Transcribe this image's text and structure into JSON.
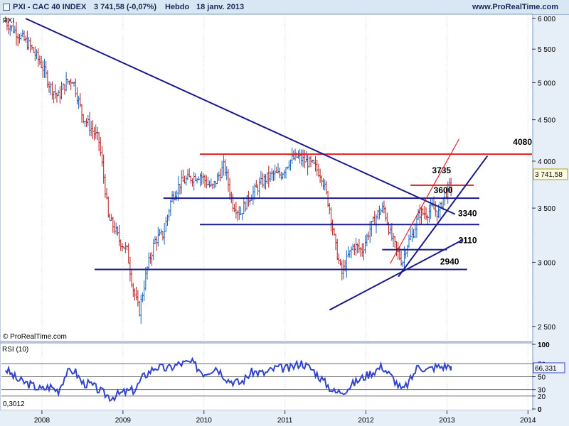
{
  "header": {
    "symbol_line": "PXI - CAC 40 INDEX",
    "price_line": "3 741,58 (-0,07%)",
    "period": "Hebdo",
    "date": "18 janv. 2013",
    "site": "www.ProRealTime.com"
  },
  "watermark": "© ProRealTime.com",
  "corner_tag": "PXI",
  "rsi_label": "RSI (10)",
  "rsi_value_tag": "66,331",
  "rsi_min_label": "0,3012",
  "last_price_tag": "3 741,58",
  "colors": {
    "up": "#1565c0",
    "down": "#b71c1c",
    "trend": "#1a1a8c",
    "resist": "#e02020",
    "rsi": "#3344cc"
  },
  "chart_data": {
    "type": "line",
    "subtype": "ohlc-bars-weekly",
    "x_labels": [
      "2008",
      "2009",
      "2010",
      "2011",
      "2012",
      "2013",
      "2014"
    ],
    "x_tick_values": [
      2008,
      2009,
      2010,
      2011,
      2012,
      2013,
      2014
    ],
    "y_labels": [
      "6 000",
      "5 500",
      "5 000",
      "4 500",
      "4 000",
      "3 500",
      "3 000",
      "2 500"
    ],
    "y_tick_values": [
      6000,
      5500,
      5000,
      4500,
      4000,
      3500,
      3000,
      2500
    ],
    "y_scale": "log",
    "ylim": [
      2400,
      6050
    ],
    "xlim": [
      2007.5,
      2014.05
    ],
    "price_path": [
      [
        2007.55,
        5950
      ],
      [
        2007.7,
        5750
      ],
      [
        2007.85,
        5550
      ],
      [
        2008.0,
        5250
      ],
      [
        2008.1,
        4950
      ],
      [
        2008.2,
        4800
      ],
      [
        2008.3,
        5000
      ],
      [
        2008.38,
        5050
      ],
      [
        2008.5,
        4550
      ],
      [
        2008.6,
        4400
      ],
      [
        2008.7,
        4250
      ],
      [
        2008.78,
        3700
      ],
      [
        2008.82,
        3400
      ],
      [
        2008.9,
        3300
      ],
      [
        2008.95,
        3200
      ],
      [
        2009.05,
        3100
      ],
      [
        2009.12,
        2800
      ],
      [
        2009.2,
        2600
      ],
      [
        2009.3,
        2950
      ],
      [
        2009.4,
        3200
      ],
      [
        2009.5,
        3250
      ],
      [
        2009.6,
        3600
      ],
      [
        2009.7,
        3750
      ],
      [
        2009.8,
        3800
      ],
      [
        2009.95,
        3850
      ],
      [
        2010.1,
        3700
      ],
      [
        2010.25,
        3950
      ],
      [
        2010.35,
        3550
      ],
      [
        2010.45,
        3450
      ],
      [
        2010.55,
        3600
      ],
      [
        2010.65,
        3700
      ],
      [
        2010.75,
        3800
      ],
      [
        2010.85,
        3850
      ],
      [
        2010.95,
        3850
      ],
      [
        2011.05,
        4000
      ],
      [
        2011.15,
        4050
      ],
      [
        2011.25,
        4000
      ],
      [
        2011.35,
        3950
      ],
      [
        2011.45,
        3850
      ],
      [
        2011.55,
        3500
      ],
      [
        2011.62,
        3150
      ],
      [
        2011.7,
        2900
      ],
      [
        2011.78,
        3050
      ],
      [
        2011.85,
        3150
      ],
      [
        2011.95,
        3100
      ],
      [
        2012.05,
        3300
      ],
      [
        2012.15,
        3450
      ],
      [
        2012.22,
        3500
      ],
      [
        2012.3,
        3250
      ],
      [
        2012.38,
        3100
      ],
      [
        2012.45,
        3000
      ],
      [
        2012.5,
        3150
      ],
      [
        2012.58,
        3250
      ],
      [
        2012.66,
        3450
      ],
      [
        2012.75,
        3450
      ],
      [
        2012.82,
        3500
      ],
      [
        2012.9,
        3450
      ],
      [
        2012.95,
        3600
      ],
      [
        2013.05,
        3741.58
      ]
    ],
    "levels": [
      {
        "label": "4080",
        "value": 4080,
        "color": "red"
      },
      {
        "label": "3735",
        "value": 3735,
        "color": "red"
      },
      {
        "label": "3600",
        "value": 3600,
        "color": "navy"
      },
      {
        "label": "3340",
        "value": 3340,
        "color": "navy"
      },
      {
        "label": "3110",
        "value": 3110,
        "color": "navy"
      },
      {
        "label": "2940",
        "value": 2940,
        "color": "navy"
      }
    ],
    "trendlines": [
      {
        "from": [
          2007.8,
          6000
        ],
        "to": [
          2013.1,
          3440
        ],
        "color": "navy"
      },
      {
        "from": [
          2011.55,
          2620
        ],
        "to": [
          2013.2,
          3200
        ],
        "color": "navy"
      },
      {
        "from": [
          2012.4,
          2880
        ],
        "to": [
          2013.5,
          4060
        ],
        "color": "navy"
      },
      {
        "from": [
          2012.3,
          2990
        ],
        "to": [
          2013.15,
          4260
        ],
        "color": "red"
      }
    ],
    "rsi": {
      "ylim": [
        0,
        100
      ],
      "y_labels": [
        "100",
        "70",
        "50",
        "30",
        "20",
        "0"
      ],
      "y_tick_values": [
        100,
        70,
        50,
        30,
        20,
        0
      ],
      "path": [
        [
          2007.55,
          62
        ],
        [
          2007.7,
          45
        ],
        [
          2007.85,
          38
        ],
        [
          2008.0,
          30
        ],
        [
          2008.1,
          35
        ],
        [
          2008.2,
          28
        ],
        [
          2008.3,
          55
        ],
        [
          2008.4,
          60
        ],
        [
          2008.5,
          40
        ],
        [
          2008.6,
          38
        ],
        [
          2008.75,
          25
        ],
        [
          2008.85,
          18
        ],
        [
          2009.0,
          25
        ],
        [
          2009.15,
          30
        ],
        [
          2009.25,
          50
        ],
        [
          2009.4,
          65
        ],
        [
          2009.55,
          62
        ],
        [
          2009.7,
          70
        ],
        [
          2009.85,
          72
        ],
        [
          2010.0,
          55
        ],
        [
          2010.15,
          65
        ],
        [
          2010.3,
          45
        ],
        [
          2010.45,
          40
        ],
        [
          2010.6,
          58
        ],
        [
          2010.75,
          55
        ],
        [
          2010.9,
          64
        ],
        [
          2011.05,
          62
        ],
        [
          2011.2,
          72
        ],
        [
          2011.35,
          60
        ],
        [
          2011.5,
          40
        ],
        [
          2011.62,
          25
        ],
        [
          2011.75,
          30
        ],
        [
          2011.9,
          44
        ],
        [
          2012.05,
          55
        ],
        [
          2012.2,
          66
        ],
        [
          2012.35,
          45
        ],
        [
          2012.45,
          28
        ],
        [
          2012.55,
          45
        ],
        [
          2012.65,
          68
        ],
        [
          2012.75,
          60
        ],
        [
          2012.85,
          65
        ],
        [
          2013.05,
          66.331
        ]
      ]
    }
  }
}
